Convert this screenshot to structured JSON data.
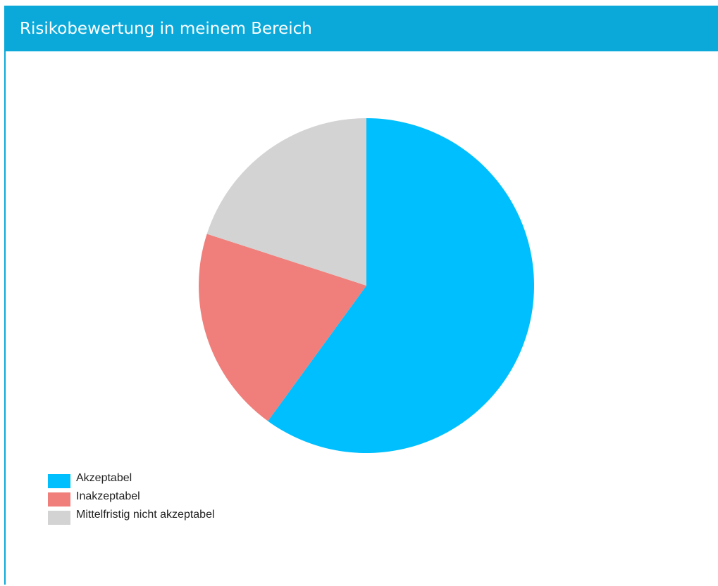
{
  "panel": {
    "title": "Risikobewertung in meinem Bereich",
    "header_color": "#0aa9da"
  },
  "chart_data": {
    "type": "pie",
    "title": "",
    "categories": [
      "Akzeptabel",
      "Inakzeptabel",
      "Mittelfristig nicht akzeptabel"
    ],
    "values": [
      60,
      20,
      20
    ],
    "colors": [
      "#00bfff",
      "#f07f7b",
      "#d3d3d3"
    ],
    "start_angle": "12 o'clock",
    "direction": "clockwise",
    "legend_position": "bottom-left"
  }
}
